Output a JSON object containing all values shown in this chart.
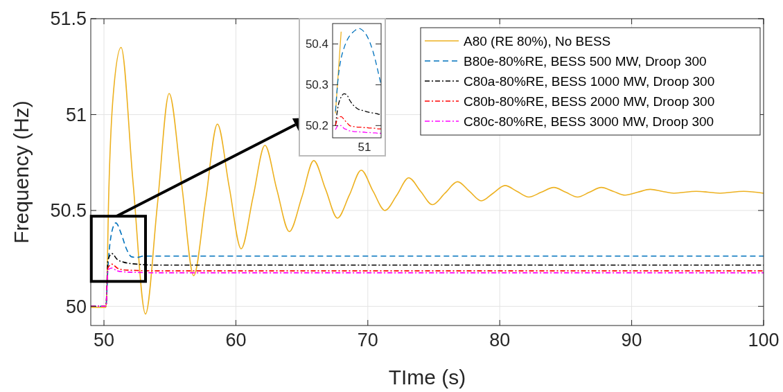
{
  "chart_data": [
    {
      "type": "line",
      "xlabel": "TIme (s)",
      "ylabel": "Frequency (Hz)",
      "xlim": [
        49,
        100
      ],
      "ylim": [
        49.9,
        51.5
      ],
      "xticks": [
        50,
        60,
        70,
        80,
        90,
        100
      ],
      "yticks": [
        50,
        50.5,
        51,
        51.5
      ],
      "grid": true,
      "legend": "top right",
      "series": [
        {
          "name": "A80 (RE 80%), No BESS",
          "color": "#edb120",
          "line_style": "solid",
          "x": [
            49,
            50.15,
            50.2,
            50.35,
            50.7,
            51.3,
            52.2,
            53.15,
            54.05,
            54.94,
            55.9,
            56.8,
            57.7,
            58.6,
            59.5,
            60.4,
            61.3,
            62.2,
            63.1,
            64.05,
            65.0,
            65.9,
            66.8,
            67.7,
            68.6,
            69.5,
            70.4,
            71.3,
            72.2,
            73.1,
            74.0,
            74.9,
            75.85,
            76.8,
            77.7,
            78.6,
            79.5,
            80.4,
            81.3,
            82.2,
            83.15,
            84.1,
            85.0,
            85.9,
            86.8,
            87.7,
            88.6,
            89.5,
            90.45,
            91.4,
            92.3,
            93.2,
            94.9,
            96.7,
            98.5,
            100
          ],
          "values": [
            49.995,
            49.995,
            50.05,
            50.55,
            51.1,
            51.35,
            50.65,
            49.96,
            50.53,
            51.11,
            50.63,
            50.16,
            50.55,
            50.95,
            50.62,
            50.3,
            50.57,
            50.84,
            50.61,
            50.39,
            50.57,
            50.76,
            50.61,
            50.46,
            50.58,
            50.71,
            50.6,
            50.5,
            50.58,
            50.67,
            50.6,
            50.53,
            50.59,
            50.65,
            50.6,
            50.55,
            50.59,
            50.63,
            50.6,
            50.57,
            50.595,
            50.62,
            50.595,
            50.57,
            50.595,
            50.62,
            50.6,
            50.58,
            50.595,
            50.61,
            50.6,
            50.59,
            50.6,
            50.59,
            50.6,
            50.59
          ]
        },
        {
          "name": "B80e-80%RE, BESS 500 MW, Droop 300",
          "color": "#0072bd",
          "line_style": "dashed",
          "x": [
            49,
            50.15,
            50.3,
            50.6,
            50.9,
            51.3,
            51.7,
            52.1,
            52.5,
            53,
            100
          ],
          "values": [
            50,
            50,
            50.2,
            50.39,
            50.435,
            50.38,
            50.3,
            50.258,
            50.255,
            50.262,
            50.262
          ]
        },
        {
          "name": "C80a-80%RE, BESS 1000 MW, Droop 300",
          "color": "#000000",
          "line_style": "dashdot",
          "x": [
            49,
            50.15,
            50.3,
            50.6,
            51,
            51.5,
            52.5,
            54,
            100
          ],
          "values": [
            50,
            50,
            50.24,
            50.275,
            50.245,
            50.23,
            50.22,
            50.215,
            50.215
          ]
        },
        {
          "name": "C80b-80%RE, BESS 2000 MW, Droop 300",
          "color": "#ff0000",
          "line_style": "dashdot",
          "x": [
            49,
            50.15,
            50.3,
            50.6,
            51,
            51.5,
            52.5,
            54,
            100
          ],
          "values": [
            50,
            50,
            50.2,
            50.22,
            50.2,
            50.19,
            50.187,
            50.185,
            50.185
          ]
        },
        {
          "name": "C80c-80%RE, BESS 3000 MW, Droop 300",
          "color": "#ff00ff",
          "line_style": "dashdot",
          "x": [
            49,
            50.15,
            50.3,
            50.6,
            51,
            51.5,
            52.5,
            54,
            100
          ],
          "values": [
            50,
            50,
            50.19,
            50.2,
            50.185,
            50.18,
            50.177,
            50.175,
            50.175
          ]
        }
      ]
    },
    {
      "type": "line",
      "categories": [
        null,
        null,
        null,
        null,
        null,
        null,
        null,
        null,
        null,
        null,
        null,
        null,
        null,
        null,
        null,
        null,
        null,
        null
      ],
      "annotations": [
        "51"
      ],
      "ylim": [
        50.17,
        50.45
      ],
      "yticks": [
        50.2,
        50.3,
        50.4
      ],
      "series": [
        {
          "color": "#edb120",
          "line_style": "solid",
          "values": [
            null,
            50.23,
            50.33,
            50.43,
            null,
            null,
            null,
            null,
            null,
            null,
            null,
            null,
            null,
            null,
            null,
            null,
            null,
            null
          ]
        },
        {
          "color": "#0072bd",
          "line_style": "dashed",
          "values": [
            null,
            50.235,
            50.32,
            50.365,
            50.39,
            50.408,
            50.42,
            50.428,
            50.434,
            50.438,
            50.436,
            50.43,
            50.42,
            50.405,
            50.385,
            50.36,
            50.33,
            50.3
          ]
        },
        {
          "color": "#000000",
          "line_style": "dashdot",
          "values": [
            null,
            50.2,
            50.25,
            50.27,
            50.278,
            50.275,
            50.262,
            50.252,
            50.245,
            50.24,
            50.238,
            50.236,
            50.234,
            50.232,
            50.231,
            50.23,
            50.228,
            50.227
          ]
        },
        {
          "color": "#ff0000",
          "line_style": "dashdot",
          "values": [
            null,
            50.2,
            50.22,
            50.222,
            50.215,
            50.207,
            50.2,
            50.198,
            50.197,
            50.196,
            50.196,
            50.195,
            50.195,
            50.194,
            50.194,
            50.193,
            50.192,
            50.192
          ]
        },
        {
          "color": "#ff00ff",
          "line_style": "dashdot",
          "values": [
            null,
            50.19,
            50.2,
            50.2,
            50.193,
            50.19,
            50.187,
            50.186,
            50.185,
            50.185,
            50.184,
            50.184,
            50.183,
            50.183,
            50.182,
            50.182,
            50.181,
            50.181
          ]
        }
      ]
    }
  ]
}
